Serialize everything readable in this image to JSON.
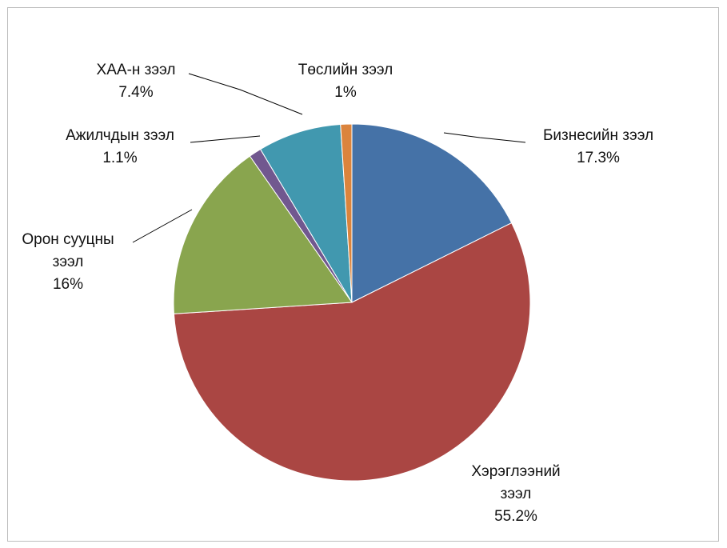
{
  "chart_data": {
    "type": "pie",
    "categories": [
      "Бизнесийн зээл",
      "Хэрэглээний зээл",
      "Орон сууцны зээл",
      "Ажилчдын зээл",
      "ХАА-н зээл",
      "Төслийн зээл"
    ],
    "values": [
      17.3,
      55.2,
      16,
      1.1,
      7.4,
      1
    ],
    "value_labels": [
      "17.3%",
      "55.2%",
      "16%",
      "1.1%",
      "7.4%",
      "1%"
    ],
    "colors": [
      "#4572a7",
      "#aa4643",
      "#89a54e",
      "#71588f",
      "#4198af",
      "#db843d"
    ]
  }
}
